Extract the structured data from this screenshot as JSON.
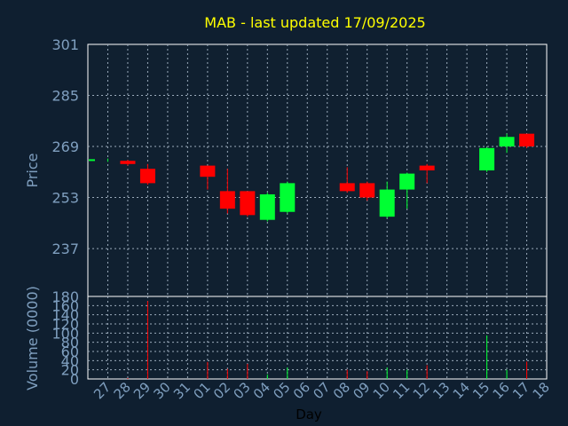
{
  "chart_data": {
    "type": "candlestick",
    "title": "MAB - last updated 17/09/2025",
    "xlabel": "Day",
    "price_panel": {
      "ylabel": "Price",
      "ylim": [
        222,
        301
      ],
      "yticks": [
        301,
        285,
        269,
        253,
        237
      ]
    },
    "volume_panel": {
      "ylabel": "Volume (0000)",
      "ylim": [
        0,
        180
      ],
      "yticks": [
        0,
        20,
        40,
        60,
        80,
        100,
        120,
        140,
        160,
        180
      ]
    },
    "x_ticks": [
      "27",
      "28",
      "29",
      "30",
      "31",
      "01",
      "02",
      "03",
      "04",
      "05",
      "06",
      "07",
      "08",
      "09",
      "10",
      "11",
      "12",
      "13",
      "14",
      "15",
      "16",
      "17",
      "18"
    ],
    "candles": [
      {
        "day": "27",
        "open": 264.5,
        "close": 265.0,
        "high": 265.2,
        "low": 264.2,
        "volume": 0
      },
      {
        "day": "28",
        "open": 264.5,
        "close": 263.5,
        "high": 264.8,
        "low": 263.0,
        "volume": 2
      },
      {
        "day": "29",
        "open": 262.0,
        "close": 257.5,
        "high": 263.5,
        "low": 257.0,
        "volume": 170
      },
      {
        "day": "01",
        "open": 263.0,
        "close": 259.5,
        "high": 263.0,
        "low": 255.5,
        "volume": 37
      },
      {
        "day": "02",
        "open": 255.0,
        "close": 249.5,
        "high": 262.0,
        "low": 248.0,
        "volume": 22
      },
      {
        "day": "03",
        "open": 255.0,
        "close": 247.5,
        "high": 255.0,
        "low": 247.0,
        "volume": 33
      },
      {
        "day": "04",
        "open": 246.0,
        "close": 254.0,
        "high": 254.5,
        "low": 245.5,
        "volume": 10
      },
      {
        "day": "05",
        "open": 248.5,
        "close": 257.5,
        "high": 258.0,
        "low": 248.0,
        "volume": 25
      },
      {
        "day": "08",
        "open": 257.5,
        "close": 255.0,
        "high": 262.5,
        "low": 254.5,
        "volume": 20
      },
      {
        "day": "09",
        "open": 257.5,
        "close": 253.0,
        "high": 258.0,
        "low": 252.0,
        "volume": 17
      },
      {
        "day": "10",
        "open": 247.0,
        "close": 255.5,
        "high": 258.0,
        "low": 246.5,
        "volume": 25
      },
      {
        "day": "11",
        "open": 255.5,
        "close": 260.5,
        "high": 260.8,
        "low": 249.5,
        "volume": 20
      },
      {
        "day": "12",
        "open": 263.0,
        "close": 261.5,
        "high": 263.5,
        "low": 257.5,
        "volume": 30
      },
      {
        "day": "15",
        "open": 261.5,
        "close": 268.5,
        "high": 268.8,
        "low": 261.0,
        "volume": 95
      },
      {
        "day": "16",
        "open": 269.0,
        "close": 272.0,
        "high": 273.0,
        "low": 267.0,
        "volume": 20
      },
      {
        "day": "17",
        "open": 273.0,
        "close": 269.0,
        "high": 273.0,
        "low": 268.5,
        "volume": 38
      }
    ],
    "grid": true,
    "colors": {
      "background": "#0f1f30",
      "panel": "#102030",
      "up": "#00ff33",
      "down": "#ff0000",
      "title": "#ffff00",
      "axis_text": "#7f9fbf",
      "grid": "#9aaaba"
    }
  }
}
